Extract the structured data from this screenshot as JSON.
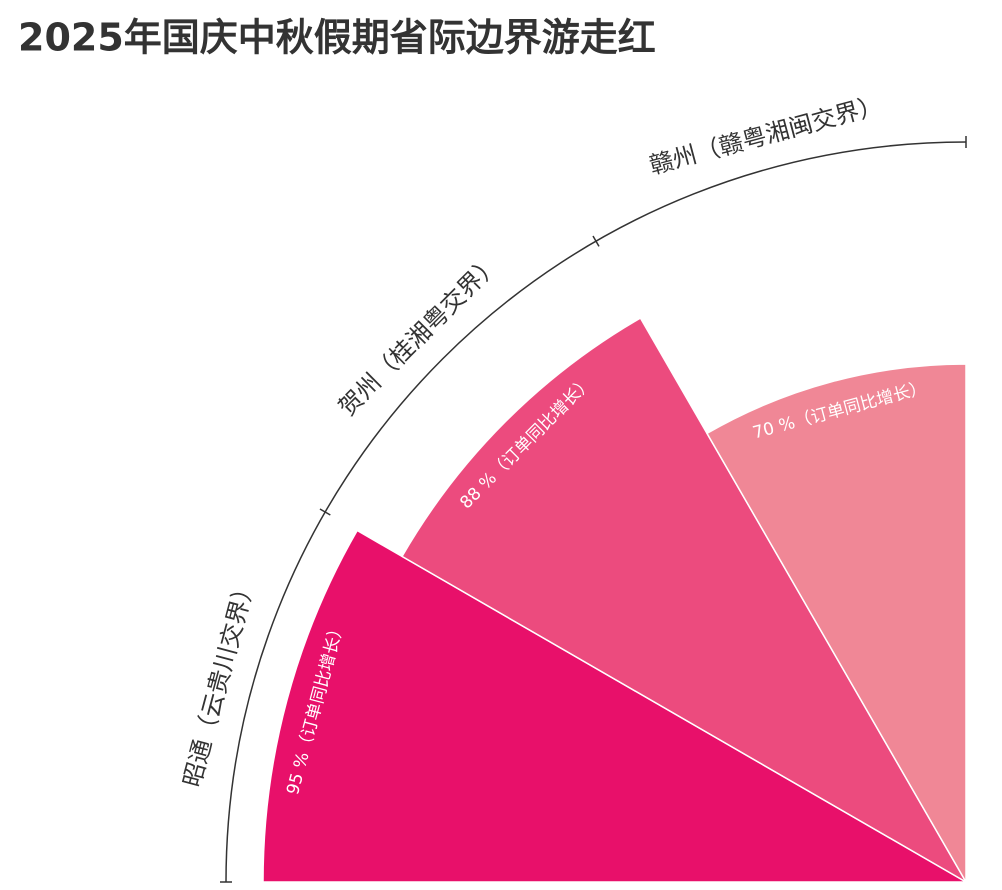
{
  "chart_data": {
    "type": "radial_bar",
    "title": "2025年国庆中秋假期省际边界游走红",
    "categories": [
      "昭通（云贵川交界）",
      "贺州（桂湘粤交界）",
      "赣州（赣粤湘闽交界）"
    ],
    "values": [
      95,
      88,
      70
    ],
    "value_labels": [
      "95 %",
      "88 %",
      "70 %"
    ],
    "value_note": "（订单同比增长）",
    "colors": [
      "#e8106a",
      "#ec4b7e",
      "#f08796"
    ],
    "rlim": [
      0,
      100
    ]
  }
}
